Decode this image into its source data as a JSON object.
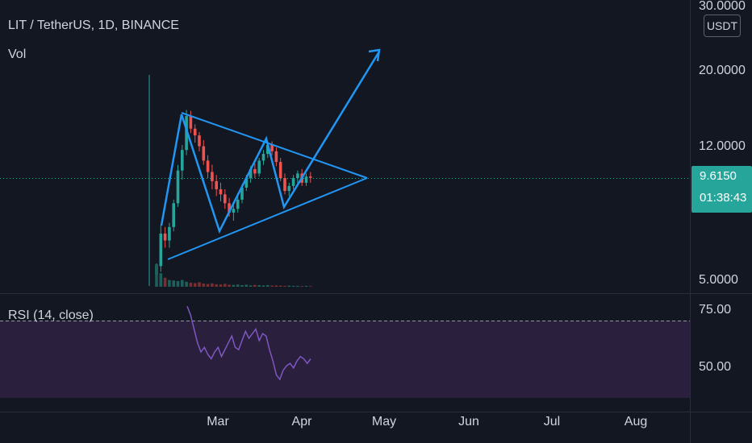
{
  "header": {
    "symbol_line": "LIT / TetherUS, 1D, BINANCE",
    "volume_label": "Vol",
    "rsi_label": "RSI (14, close)"
  },
  "price_axis": {
    "currency_badge": "USDT",
    "top_label_partial": "30.0000",
    "current_price": "9.6150",
    "countdown": "01:38:43"
  },
  "colors": {
    "background": "#131722",
    "up": "#26a69a",
    "down": "#ef5350",
    "drawing": "#2196f3",
    "rsi_line": "#7e57c2",
    "rsi_band": "#2a1f3d"
  },
  "chart_data": [
    {
      "type": "candlestick",
      "title": "LIT / TetherUS, 1D, BINANCE",
      "y_scale": "log",
      "y_ticks": [
        "20.0000",
        "12.0000",
        "5.0000"
      ],
      "x_ticks": [
        "Mar",
        "Apr",
        "May",
        "Jun",
        "Jul",
        "Aug"
      ],
      "current_price": 9.615,
      "ohlc_approx": [
        [
          5.0,
          5.4,
          4.9,
          5.3
        ],
        [
          5.3,
          7.0,
          5.1,
          6.6
        ],
        [
          6.6,
          6.9,
          6.0,
          6.3
        ],
        [
          6.3,
          7.1,
          6.0,
          6.9
        ],
        [
          6.9,
          8.3,
          6.7,
          8.1
        ],
        [
          8.1,
          10.5,
          7.9,
          10.1
        ],
        [
          10.1,
          12.0,
          9.5,
          11.6
        ],
        [
          11.6,
          15.2,
          11.2,
          14.6
        ],
        [
          14.6,
          15.1,
          13.0,
          13.4
        ],
        [
          13.4,
          13.8,
          12.2,
          12.8
        ],
        [
          12.8,
          13.1,
          11.5,
          11.9
        ],
        [
          11.9,
          12.4,
          10.5,
          10.8
        ],
        [
          10.8,
          11.2,
          9.6,
          10.0
        ],
        [
          10.0,
          10.5,
          8.9,
          9.4
        ],
        [
          9.4,
          9.8,
          8.5,
          8.9
        ],
        [
          8.9,
          9.3,
          8.2,
          8.6
        ],
        [
          8.6,
          8.9,
          7.8,
          8.1
        ],
        [
          8.1,
          8.4,
          7.4,
          7.6
        ],
        [
          7.6,
          8.0,
          7.2,
          7.8
        ],
        [
          7.8,
          8.5,
          7.6,
          8.3
        ],
        [
          8.3,
          9.2,
          8.1,
          9.0
        ],
        [
          9.0,
          9.8,
          8.8,
          9.6
        ],
        [
          9.6,
          10.4,
          9.3,
          10.2
        ],
        [
          10.2,
          10.6,
          9.6,
          9.9
        ],
        [
          9.9,
          11.0,
          9.7,
          10.8
        ],
        [
          10.8,
          11.6,
          10.5,
          11.3
        ],
        [
          11.3,
          12.3,
          11.0,
          12.0
        ],
        [
          12.0,
          12.3,
          11.2,
          11.5
        ],
        [
          11.5,
          11.8,
          10.4,
          10.7
        ],
        [
          10.7,
          11.0,
          9.4,
          9.6
        ],
        [
          9.6,
          9.9,
          8.6,
          8.8
        ],
        [
          8.8,
          9.3,
          8.5,
          9.1
        ],
        [
          9.1,
          9.8,
          8.9,
          9.6
        ],
        [
          9.6,
          10.1,
          9.2,
          9.9
        ],
        [
          9.9,
          10.2,
          9.1,
          9.3
        ],
        [
          9.3,
          9.9,
          9.1,
          9.7
        ],
        [
          9.7,
          10.0,
          9.3,
          9.615
        ]
      ]
    },
    {
      "type": "bar",
      "title": "Vol",
      "values_approx": [
        100,
        60,
        40,
        30,
        28,
        25,
        30,
        22,
        18,
        16,
        20,
        14,
        12,
        15,
        11,
        10,
        13,
        9,
        8,
        10,
        7,
        9,
        6,
        8,
        7,
        6,
        7,
        5,
        6,
        5,
        4,
        5,
        4,
        4,
        3,
        4,
        3
      ]
    },
    {
      "type": "line",
      "title": "RSI (14, close)",
      "y_ticks": [
        "75.00",
        "50.00"
      ],
      "values_approx": [
        76,
        72,
        66,
        60,
        56,
        58,
        55,
        53,
        56,
        58,
        54,
        57,
        60,
        63,
        58,
        57,
        61,
        65,
        62,
        64,
        66,
        61,
        64,
        63,
        57,
        52,
        46,
        44,
        48,
        50,
        51,
        49,
        52,
        54,
        53,
        51,
        53
      ]
    }
  ]
}
